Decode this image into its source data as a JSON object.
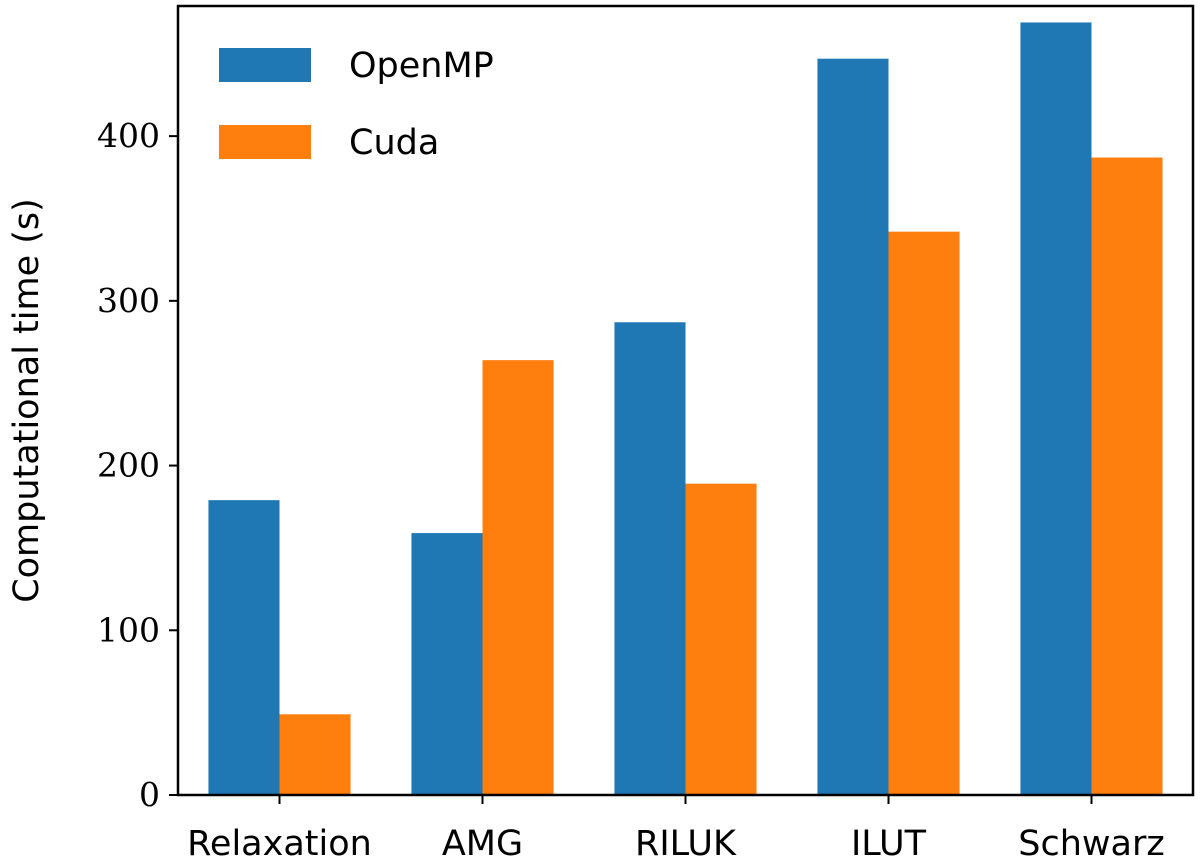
{
  "chart_data": {
    "type": "bar",
    "categories": [
      "Relaxation",
      "AMG",
      "RILUK",
      "ILUT",
      "Schwarz"
    ],
    "series": [
      {
        "name": "OpenMP",
        "color": "#1f77b4",
        "values": [
          179,
          159,
          287,
          447,
          469
        ]
      },
      {
        "name": "Cuda",
        "color": "#ff7f0e",
        "values": [
          49,
          264,
          189,
          342,
          387
        ]
      }
    ],
    "ylabel": "Computational time (s)",
    "xlabel": "",
    "ylim": [
      0,
      479
    ],
    "yticks": [
      0,
      100,
      200,
      300,
      400
    ],
    "legend_position": "top-left",
    "grid": false
  }
}
